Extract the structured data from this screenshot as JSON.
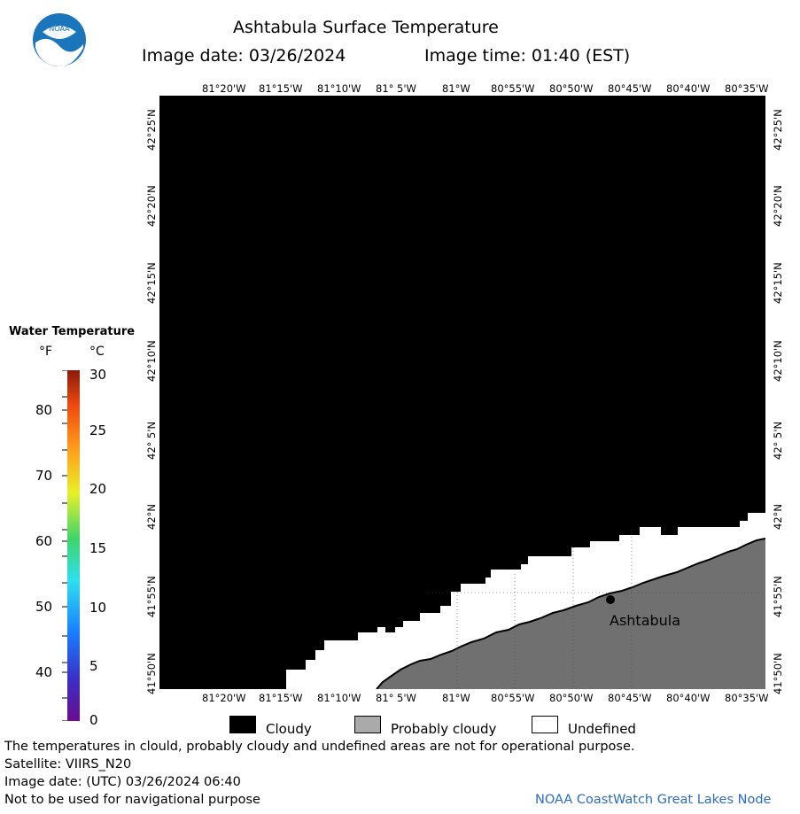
{
  "header": {
    "title": "Ashtabula Surface Temperature",
    "image_date_label": "Image date: 03/26/2024",
    "image_time_label": "Image time: 01:40 (EST)"
  },
  "logo": {
    "text": "NOAA"
  },
  "map": {
    "lon_labels": [
      "81°20'W",
      "81°15'W",
      "81°10'W",
      "81° 5'W",
      "81°W",
      "80°55'W",
      "80°50'W",
      "80°45'W",
      "80°40'W",
      "80°35'W"
    ],
    "lat_labels": [
      "42°25'N",
      "42°20'N",
      "42°15'N",
      "42°10'N",
      "42° 5'N",
      "42°N",
      "41°55'N",
      "41°50'N"
    ],
    "city": "Ashtabula",
    "colors": {
      "cloudy": "#000000",
      "probably_cloudy": "#707070",
      "undefined": "#ffffff"
    }
  },
  "scale": {
    "title": "Water Temperature",
    "unit_f": "°F",
    "unit_c": "°C",
    "f_ticks": [
      "80",
      "70",
      "60",
      "50",
      "40"
    ],
    "c_ticks": [
      "30",
      "25",
      "20",
      "15",
      "10",
      "5",
      "0"
    ]
  },
  "legend": {
    "cloudy": "Cloudy",
    "probably_cloudy": "Probably cloudy",
    "undefined": "Undefined"
  },
  "footer": {
    "line1": "The temperatures in clould, probably cloudy and undefined areas are not for operational purpose.",
    "line2": "Satellite: VIIRS_N20",
    "line3": "Image date: (UTC) 03/26/2024  06:40",
    "line4": "Not to be used for navigational purpose",
    "credit": "NOAA CoastWatch Great Lakes Node"
  }
}
